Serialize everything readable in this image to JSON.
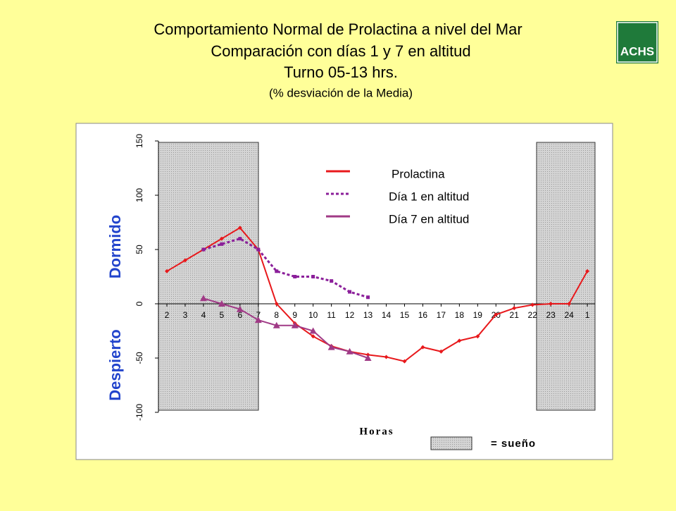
{
  "logo": "ACHS",
  "chart_data": {
    "type": "line",
    "title_lines": [
      "Comportamiento Normal de Prolactina a nivel del Mar",
      "Comparación con días 1 y 7 en altitud",
      "Turno 05-13 hrs."
    ],
    "subtitle": "(% desviación de la Media)",
    "x_label": "Horas",
    "annotations": {
      "upper": "Dormido",
      "lower": "Despierto",
      "sleep_legend": "= sueño"
    },
    "categories": [
      "2",
      "3",
      "4",
      "5",
      "6",
      "7",
      "8",
      "9",
      "10",
      "11",
      "12",
      "13",
      "14",
      "15",
      "16",
      "17",
      "18",
      "19",
      "20",
      "21",
      "22",
      "23",
      "24",
      "1"
    ],
    "series": [
      {
        "name": "Prolactina",
        "color": "#e8191c",
        "style": "solid",
        "marker": "diamond",
        "values": [
          30,
          40,
          50,
          60,
          70,
          50,
          0,
          -18,
          -30,
          -39,
          -44,
          -47,
          -49,
          -53,
          -40,
          -44,
          -34,
          -30,
          -10,
          -4,
          -1,
          0,
          0,
          30
        ]
      },
      {
        "name": "Día 1 en altitud",
        "color": "#8b1f9a",
        "style": "dotted",
        "marker": "square",
        "values": [
          null,
          null,
          50,
          55,
          60,
          50,
          30,
          25,
          25,
          21,
          11,
          6,
          null,
          null,
          null,
          null,
          null,
          null,
          null,
          null,
          null,
          null,
          null,
          null
        ]
      },
      {
        "name": "Día 7 en altitud",
        "color": "#a03a86",
        "style": "solid",
        "marker": "triangle",
        "values": [
          null,
          null,
          5,
          0,
          -5,
          -15,
          -20,
          -20,
          -25,
          -40,
          -44,
          -50,
          null,
          null,
          null,
          null,
          null,
          null,
          null,
          null,
          null,
          null,
          null,
          null
        ]
      }
    ],
    "ylim": [
      -100,
      150
    ],
    "yticks": [
      -100,
      -50,
      0,
      50,
      100,
      150
    ],
    "grid": false
  }
}
